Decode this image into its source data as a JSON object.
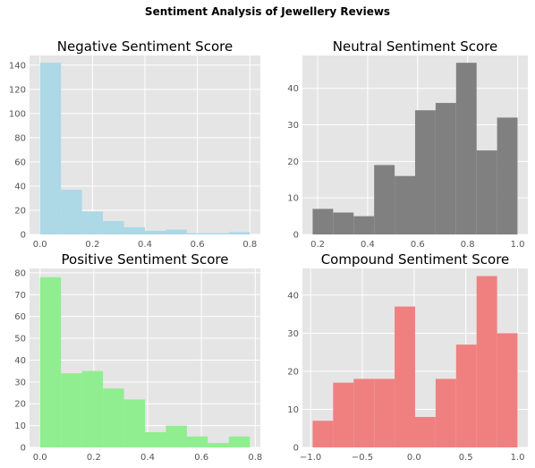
{
  "suptitle": "Sentiment Analysis of Jewellery Reviews",
  "chart_data": [
    {
      "type": "bar",
      "title": "Negative Sentiment Score",
      "color": "#add8e6",
      "bin_edges": [
        0,
        0.08,
        0.16,
        0.24,
        0.32,
        0.4,
        0.48,
        0.56,
        0.64,
        0.72,
        0.8
      ],
      "values": [
        142,
        37,
        19,
        11,
        6,
        3,
        4,
        1,
        1,
        2
      ],
      "xlim": [
        -0.04,
        0.84
      ],
      "ylim": [
        0,
        148
      ],
      "xticks": [
        0.0,
        0.2,
        0.4,
        0.6,
        0.8
      ],
      "xtick_labels": [
        "0.0",
        "0.2",
        "0.4",
        "0.6",
        "0.8"
      ],
      "yticks": [
        0,
        20,
        40,
        60,
        80,
        100,
        120,
        140
      ],
      "ytick_labels": [
        "0",
        "20",
        "40",
        "60",
        "80",
        "100",
        "120",
        "140"
      ],
      "grid": true
    },
    {
      "type": "bar",
      "title": "Neutral Sentiment Score",
      "color": "#808080",
      "bin_edges": [
        0.18,
        0.262,
        0.344,
        0.426,
        0.508,
        0.59,
        0.672,
        0.754,
        0.836,
        0.918,
        1.0
      ],
      "values": [
        7,
        6,
        5,
        19,
        16,
        34,
        36,
        47,
        23,
        32
      ],
      "xlim": [
        0.139,
        1.041
      ],
      "ylim": [
        0,
        49
      ],
      "xticks": [
        0.2,
        0.4,
        0.6,
        0.8,
        1.0
      ],
      "xtick_labels": [
        "0.2",
        "0.4",
        "0.6",
        "0.8",
        "1.0"
      ],
      "yticks": [
        0,
        10,
        20,
        30,
        40
      ],
      "ytick_labels": [
        "0",
        "10",
        "20",
        "30",
        "40"
      ],
      "grid": true
    },
    {
      "type": "bar",
      "title": "Positive Sentiment Score",
      "color": "#90ee90",
      "bin_edges": [
        0,
        0.078,
        0.156,
        0.234,
        0.312,
        0.39,
        0.468,
        0.546,
        0.624,
        0.702,
        0.78
      ],
      "values": [
        78,
        34,
        35,
        27,
        22,
        7,
        10,
        5,
        2,
        5
      ],
      "xlim": [
        -0.039,
        0.819
      ],
      "ylim": [
        0,
        82
      ],
      "xticks": [
        0.0,
        0.2,
        0.4,
        0.6,
        0.8
      ],
      "xtick_labels": [
        "0.0",
        "0.2",
        "0.4",
        "0.6",
        "0.8"
      ],
      "yticks": [
        0,
        10,
        20,
        30,
        40,
        50,
        60,
        70,
        80
      ],
      "ytick_labels": [
        "0",
        "10",
        "20",
        "30",
        "40",
        "50",
        "60",
        "70",
        "80"
      ],
      "grid": true
    },
    {
      "type": "bar",
      "title": "Compound Sentiment Score",
      "color": "#f08080",
      "bin_edges": [
        -0.98,
        -0.782,
        -0.584,
        -0.386,
        -0.188,
        0.01,
        0.208,
        0.406,
        0.604,
        0.802,
        1.0
      ],
      "values": [
        7,
        17,
        18,
        18,
        37,
        8,
        18,
        27,
        45,
        30
      ],
      "xlim": [
        -1.079,
        1.099
      ],
      "ylim": [
        0,
        47
      ],
      "xticks": [
        -1.0,
        -0.5,
        0.0,
        0.5,
        1.0
      ],
      "xtick_labels": [
        "−1.0",
        "−0.5",
        "0.0",
        "0.5",
        "1.0"
      ],
      "yticks": [
        0,
        10,
        20,
        30,
        40
      ],
      "ytick_labels": [
        "0",
        "10",
        "20",
        "30",
        "40"
      ],
      "grid": true
    }
  ]
}
